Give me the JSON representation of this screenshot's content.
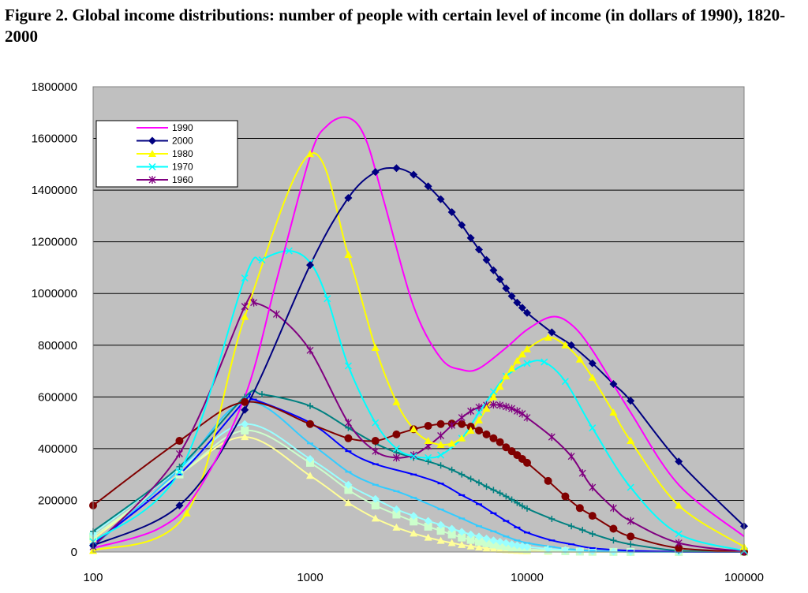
{
  "title": "Figure 2. Global income distributions: number of people with certain level of income (in dollars of 1990), 1820-2000",
  "chart_data": {
    "type": "line",
    "title": "Figure 2. Global income distributions: number of people with certain level of income (in dollars of 1990), 1820-2000",
    "xscale": "log",
    "xlim": [
      100,
      100000
    ],
    "ylim": [
      0,
      1800000
    ],
    "grid": true,
    "legend_position": "top-left",
    "x_tick_labels": [
      "100",
      "1000",
      "10000",
      "100000"
    ],
    "x_tick_values": [
      100,
      1000,
      10000,
      100000
    ],
    "y_tick_labels": [
      "0",
      "200000",
      "400000",
      "600000",
      "800000",
      "1000000",
      "1200000",
      "1400000",
      "1600000",
      "1800000"
    ],
    "y_tick_values": [
      0,
      200000,
      400000,
      600000,
      800000,
      1000000,
      1200000,
      1400000,
      1600000,
      1800000
    ],
    "plot_background": "#c0c0c0",
    "series": [
      {
        "name": "1990",
        "color": "#ff00ff",
        "marker": "none",
        "in_legend": true,
        "x": [
          100,
          200,
          300,
          500,
          700,
          1000,
          1200,
          1500,
          1800,
          2200,
          3000,
          4000,
          5000,
          6000,
          8000,
          10000,
          13000,
          16000,
          20000,
          30000,
          50000,
          100000
        ],
        "y": [
          15000,
          90000,
          230000,
          600000,
          1050000,
          1530000,
          1650000,
          1680000,
          1600000,
          1350000,
          950000,
          750000,
          705000,
          710000,
          790000,
          860000,
          910000,
          880000,
          780000,
          540000,
          260000,
          60000
        ]
      },
      {
        "name": "2000",
        "color": "#000080",
        "marker": "diamond",
        "in_legend": true,
        "x": [
          100,
          250,
          500,
          1000,
          1500,
          2000,
          2500,
          3000,
          3500,
          4000,
          4500,
          5000,
          5500,
          6000,
          6500,
          7000,
          7500,
          8000,
          8500,
          9000,
          9500,
          10000,
          13000,
          16000,
          20000,
          25000,
          30000,
          50000,
          100000
        ],
        "y": [
          25000,
          180000,
          550000,
          1110000,
          1370000,
          1470000,
          1485000,
          1460000,
          1415000,
          1365000,
          1315000,
          1265000,
          1215000,
          1170000,
          1130000,
          1090000,
          1055000,
          1020000,
          990000,
          965000,
          945000,
          925000,
          850000,
          800000,
          730000,
          650000,
          585000,
          350000,
          100000
        ]
      },
      {
        "name": "1980",
        "color": "#ffff00",
        "marker": "triangle",
        "in_legend": true,
        "x": [
          100,
          270,
          500,
          1000,
          1500,
          2000,
          2500,
          3000,
          3500,
          4000,
          4500,
          5000,
          5500,
          6000,
          6500,
          7000,
          7500,
          8000,
          8500,
          9000,
          9500,
          10000,
          12500,
          15000,
          17500,
          20000,
          25000,
          30000,
          50000,
          100000
        ],
        "y": [
          5000,
          150000,
          910000,
          1540000,
          1150000,
          790000,
          580000,
          475000,
          430000,
          415000,
          420000,
          440000,
          470000,
          510000,
          555000,
          600000,
          640000,
          680000,
          710000,
          740000,
          765000,
          785000,
          830000,
          800000,
          745000,
          675000,
          540000,
          430000,
          180000,
          20000
        ]
      },
      {
        "name": "1970",
        "color": "#00ffff",
        "marker": "x",
        "in_legend": true,
        "x": [
          100,
          250,
          500,
          600,
          800,
          1000,
          1200,
          1500,
          2000,
          2500,
          3000,
          3500,
          4000,
          5000,
          6000,
          7000,
          8000,
          10000,
          12000,
          15000,
          20000,
          30000,
          50000,
          100000
        ],
        "y": [
          40000,
          310000,
          1060000,
          1130000,
          1165000,
          1120000,
          980000,
          720000,
          500000,
          400000,
          370000,
          365000,
          375000,
          440000,
          540000,
          620000,
          680000,
          730000,
          735000,
          660000,
          480000,
          250000,
          70000,
          5000
        ]
      },
      {
        "name": "1960",
        "color": "#800080",
        "marker": "asterisk",
        "in_legend": true,
        "x": [
          100,
          250,
          500,
          550,
          700,
          1000,
          1500,
          2000,
          2500,
          3000,
          3500,
          4000,
          4500,
          5000,
          5500,
          6000,
          6500,
          7000,
          7500,
          8000,
          8500,
          9000,
          9500,
          10000,
          13000,
          16000,
          18000,
          20000,
          25000,
          30000,
          50000,
          100000
        ],
        "y": [
          20000,
          380000,
          950000,
          965000,
          920000,
          780000,
          500000,
          390000,
          365000,
          375000,
          410000,
          450000,
          490000,
          520000,
          545000,
          560000,
          568000,
          570000,
          568000,
          562000,
          555000,
          545000,
          535000,
          520000,
          445000,
          370000,
          305000,
          250000,
          170000,
          120000,
          35000,
          2000
        ]
      },
      {
        "name": "",
        "color": "#800000",
        "marker": "circle",
        "in_legend": false,
        "x": [
          100,
          250,
          500,
          1000,
          1500,
          2000,
          2500,
          3000,
          3500,
          4000,
          4500,
          5000,
          5500,
          6000,
          6500,
          7000,
          7500,
          8000,
          8500,
          9000,
          9500,
          10000,
          12500,
          15000,
          17500,
          20000,
          25000,
          30000,
          50000,
          100000
        ],
        "y": [
          180000,
          430000,
          580000,
          495000,
          440000,
          430000,
          455000,
          475000,
          488000,
          495000,
          497000,
          495000,
          485000,
          470000,
          455000,
          440000,
          425000,
          405000,
          390000,
          375000,
          360000,
          345000,
          275000,
          215000,
          170000,
          140000,
          90000,
          60000,
          15000,
          1000
        ]
      },
      {
        "name": "",
        "color": "#008080",
        "marker": "plus",
        "in_legend": false,
        "x": [
          100,
          250,
          500,
          600,
          1000,
          1500,
          2000,
          2500,
          3000,
          3500,
          4000,
          4500,
          5000,
          5500,
          6000,
          6500,
          7000,
          7500,
          8000,
          8500,
          9000,
          9500,
          10000,
          13000,
          16000,
          18000,
          20000,
          25000,
          30000,
          50000,
          100000
        ],
        "y": [
          80000,
          330000,
          600000,
          610000,
          565000,
          480000,
          420000,
          385000,
          365000,
          350000,
          335000,
          318000,
          300000,
          283000,
          268000,
          253000,
          240000,
          228000,
          215000,
          203000,
          190000,
          178000,
          168000,
          128000,
          100000,
          85000,
          70000,
          45000,
          30000,
          5000,
          500
        ]
      },
      {
        "name": "",
        "color": "#0000ff",
        "marker": "dash",
        "in_legend": false,
        "x": [
          100,
          250,
          500,
          550,
          1000,
          1500,
          2000,
          3000,
          4000,
          5000,
          6000,
          7000,
          8000,
          9000,
          10000,
          13000,
          16000,
          20000,
          30000,
          50000,
          100000
        ],
        "y": [
          30000,
          300000,
          585000,
          590000,
          500000,
          390000,
          340000,
          300000,
          265000,
          220000,
          185000,
          150000,
          120000,
          95000,
          75000,
          45000,
          30000,
          15000,
          5000,
          1000,
          0
        ]
      },
      {
        "name": "",
        "color": "#33ccff",
        "marker": "dash",
        "in_legend": false,
        "x": [
          100,
          250,
          500,
          1000,
          1500,
          2000,
          2500,
          3000,
          4000,
          5000,
          6000,
          7000,
          8000,
          9000,
          10000,
          13000,
          16000,
          20000,
          30000,
          50000,
          100000
        ],
        "y": [
          20000,
          320000,
          580000,
          420000,
          310000,
          260000,
          235000,
          210000,
          165000,
          130000,
          100000,
          80000,
          60000,
          45000,
          35000,
          20000,
          10000,
          5000,
          1000,
          0,
          0
        ]
      },
      {
        "name": "",
        "color": "#99ffff",
        "marker": "diamond",
        "in_legend": false,
        "x": [
          100,
          250,
          500,
          1000,
          1500,
          2000,
          2500,
          3000,
          3500,
          4000,
          4500,
          5000,
          5500,
          6000,
          6500,
          7000,
          7500,
          8000,
          8500,
          9000,
          9500,
          10000,
          12500,
          15000,
          17500,
          20000,
          25000,
          30000,
          50000,
          100000
        ],
        "y": [
          70000,
          320000,
          495000,
          360000,
          260000,
          205000,
          165000,
          140000,
          120000,
          105000,
          90000,
          78000,
          68000,
          60000,
          52000,
          45000,
          40000,
          35000,
          30000,
          26000,
          23000,
          20000,
          12000,
          8000,
          5000,
          3000,
          1000,
          500,
          0,
          0
        ]
      },
      {
        "name": "",
        "color": "#ccffcc",
        "marker": "square",
        "in_legend": false,
        "x": [
          100,
          250,
          500,
          1000,
          1500,
          2000,
          2500,
          3000,
          3500,
          4000,
          4500,
          5000,
          5500,
          6000,
          6500,
          7000,
          7500,
          8000,
          8500,
          9000,
          9500,
          10000,
          12500,
          15000,
          17500,
          20000,
          25000,
          30000,
          50000,
          100000
        ],
        "y": [
          60000,
          300000,
          470000,
          345000,
          240000,
          180000,
          145000,
          118000,
          98000,
          82000,
          68000,
          56000,
          47000,
          40000,
          34000,
          29000,
          25000,
          21000,
          18000,
          15000,
          13000,
          11000,
          6000,
          3000,
          1500,
          800,
          300,
          100,
          0,
          0
        ]
      },
      {
        "name": "",
        "color": "#ffff99",
        "marker": "triangle",
        "in_legend": false,
        "x": [
          100,
          250,
          500,
          1000,
          1500,
          2000,
          2500,
          3000,
          3500,
          4000,
          4500,
          5000,
          5500,
          6000,
          6500,
          7000,
          7500,
          8000,
          8500,
          9000,
          9500,
          10000,
          12500,
          15000,
          17500,
          20000,
          25000,
          30000,
          50000,
          100000
        ],
        "y": [
          50000,
          300000,
          445000,
          295000,
          190000,
          130000,
          95000,
          72000,
          56000,
          44000,
          35000,
          28000,
          22000,
          18000,
          14000,
          11000,
          9000,
          7500,
          6000,
          5000,
          4000,
          3000,
          1500,
          800,
          400,
          200,
          50,
          20,
          0,
          0
        ]
      }
    ]
  }
}
